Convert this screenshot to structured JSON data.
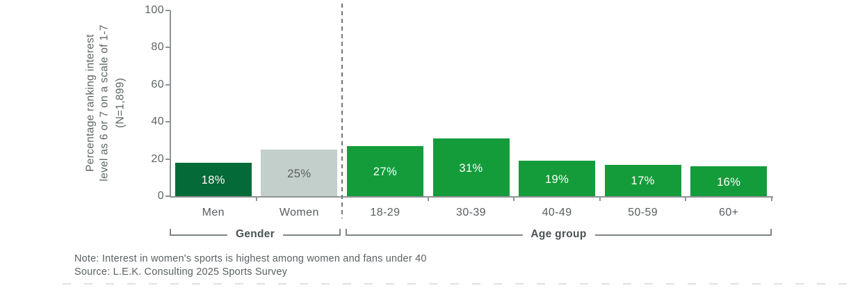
{
  "chart_data": {
    "type": "bar",
    "title": "",
    "ylabel_lines": [
      "Percentage ranking interest",
      "level as 6 or 7 on a scale of 1-7",
      "(N=1,899)"
    ],
    "ylim": [
      0,
      100
    ],
    "yticks": [
      0,
      20,
      40,
      60,
      80,
      100
    ],
    "categories": [
      "Men",
      "Women",
      "18-29",
      "30-39",
      "40-49",
      "50-59",
      "60+"
    ],
    "values": [
      18,
      25,
      27,
      31,
      19,
      17,
      16
    ],
    "value_labels": [
      "18%",
      "25%",
      "27%",
      "31%",
      "19%",
      "17%",
      "16%"
    ],
    "bar_colors": [
      "#046a38",
      "#c3cfca",
      "#149c3b",
      "#149c3b",
      "#149c3b",
      "#149c3b",
      "#149c3b"
    ],
    "value_label_colors": [
      "#ffffff",
      "#585f61",
      "#ffffff",
      "#ffffff",
      "#ffffff",
      "#ffffff",
      "#ffffff"
    ],
    "groups": [
      {
        "label": "Gender",
        "start_index": 0,
        "end_index": 1
      },
      {
        "label": "Age group",
        "start_index": 2,
        "end_index": 6
      }
    ],
    "separator_after_index": 1,
    "grid": "off",
    "legend": "none"
  },
  "footer": {
    "note": "Note: Interest in women's sports is highest among women and fans under 40",
    "source": "Source: L.E.K. Consulting 2025 Sports Survey"
  },
  "colors": {
    "axis": "#8d9395",
    "tick_label": "#5d6466",
    "category_label": "#575d5f",
    "bracket_line": "#7d8486",
    "bracket_label": "#4a5153",
    "note_text": "#5a6163",
    "separator_dash": "#6f7678",
    "dark_green": "#046a38",
    "mid_green": "#149c3b",
    "light_gray_green": "#c3cfca"
  }
}
